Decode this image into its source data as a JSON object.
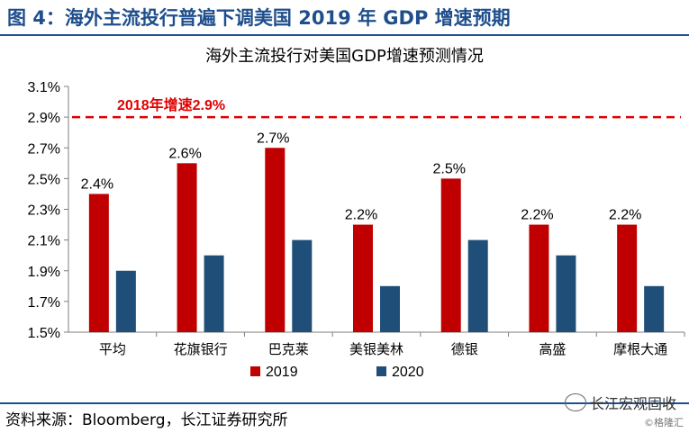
{
  "figure_title": "图 4：海外主流投行普遍下调美国 2019 年 GDP 增速预期",
  "source_text": "资料来源：Bloomberg，长江证券研究所",
  "watermark": "长江宏观固收",
  "watermark_sub": "©格隆汇",
  "colors": {
    "series_2019": "#c00000",
    "series_2020": "#1f4e79",
    "reference_line": "#e00000",
    "accent": "#1f4e8c"
  },
  "chart_data": {
    "type": "bar",
    "title": "海外主流投行对美国GDP增速预测情况",
    "categories": [
      "平均",
      "花旗银行",
      "巴克莱",
      "美银美林",
      "德银",
      "高盛",
      "摩根大通"
    ],
    "series": [
      {
        "name": "2019",
        "values": [
          2.4,
          2.6,
          2.7,
          2.2,
          2.5,
          2.2,
          2.2
        ],
        "data_labels": [
          "2.4%",
          "2.6%",
          "2.7%",
          "2.2%",
          "2.5%",
          "2.2%",
          "2.2%"
        ]
      },
      {
        "name": "2020",
        "values": [
          1.9,
          2.0,
          2.1,
          1.8,
          2.1,
          2.0,
          1.8
        ]
      }
    ],
    "ylim": [
      1.5,
      3.1
    ],
    "yticks": [
      1.5,
      1.7,
      1.9,
      2.1,
      2.3,
      2.5,
      2.7,
      2.9,
      3.1
    ],
    "ytick_labels": [
      "1.5%",
      "1.7%",
      "1.9%",
      "2.1%",
      "2.3%",
      "2.5%",
      "2.7%",
      "2.9%",
      "3.1%"
    ],
    "reference_line": {
      "value": 2.9,
      "label": "2018年增速2.9%"
    },
    "legend": {
      "position": "bottom",
      "labels": [
        "2019",
        "2020"
      ]
    },
    "grid": false
  }
}
